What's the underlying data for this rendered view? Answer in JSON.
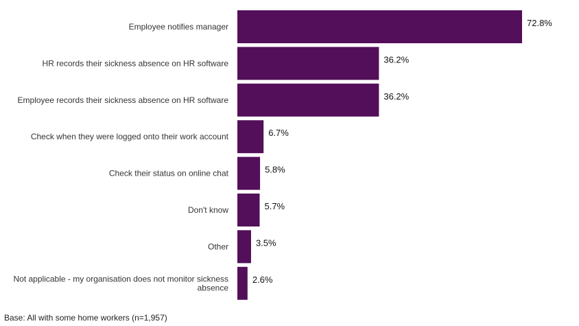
{
  "chart_data": {
    "type": "bar",
    "orientation": "horizontal",
    "categories": [
      [
        "Employee notifies manager"
      ],
      [
        "HR records their sickness absence on HR software"
      ],
      [
        "Employee records their sickness absence on HR software"
      ],
      [
        "Check when they were logged onto their work account"
      ],
      [
        "Check their status on online chat"
      ],
      [
        "Don't know"
      ],
      [
        "Other"
      ],
      [
        "Not applicable - my organisation does not monitor sickness",
        "absence"
      ]
    ],
    "values": [
      72.8,
      36.2,
      36.2,
      6.7,
      5.8,
      5.7,
      3.5,
      2.6
    ],
    "value_labels": [
      "72.8%",
      "36.2%",
      "36.2%",
      "6.7%",
      "5.8%",
      "5.7%",
      "3.5%",
      "2.6%"
    ],
    "xlim": [
      0,
      72.8
    ],
    "grid": false,
    "bar_color": "#530f59"
  },
  "footnote": "Base: All with some home workers (n=1,957)"
}
